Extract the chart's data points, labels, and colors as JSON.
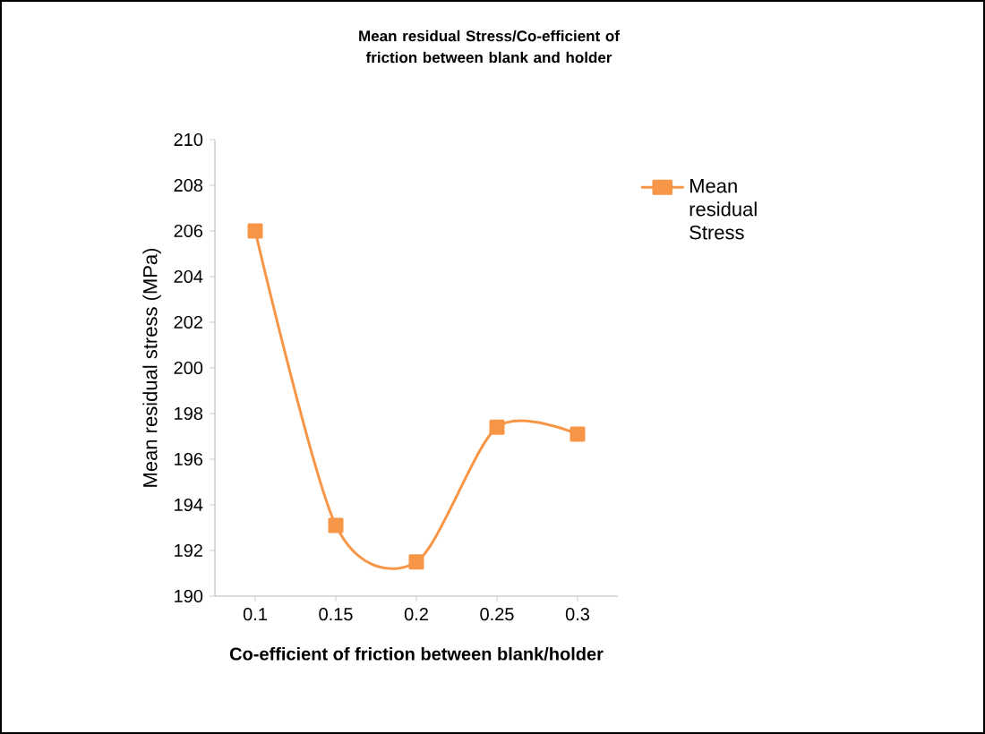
{
  "chart_data": {
    "type": "line",
    "title": "Mean residual  Stress/Co-efficient  of friction between blank and holder",
    "xlabel": "Co-efficient  of friction between blank/holder",
    "ylabel": "Mean residual stress (MPa)",
    "categories": [
      "0.1",
      "0.15",
      "0.2",
      "0.25",
      "0.3"
    ],
    "series": [
      {
        "name": "Mean residual Stress",
        "color": "#f79646",
        "values": [
          206,
          193.1,
          191.5,
          197.4,
          197.1
        ]
      }
    ],
    "ylim": [
      190,
      210
    ],
    "yticks": [
      190,
      192,
      194,
      196,
      198,
      200,
      202,
      204,
      206,
      208,
      210
    ],
    "legend": "right",
    "marker": "square"
  }
}
